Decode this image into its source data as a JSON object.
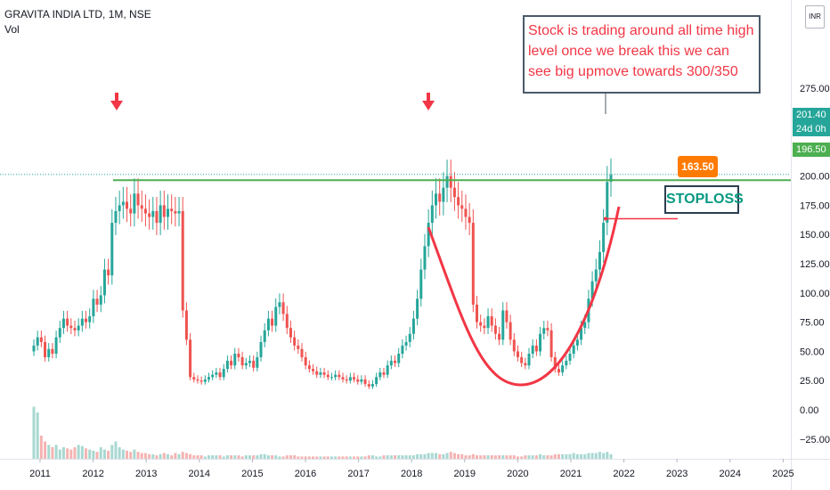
{
  "header": {
    "symbol_title": "GRAVITA INDIA LTD, 1M, NSE",
    "volume_label": "Vol"
  },
  "currency": "INR",
  "price_tags": {
    "last_price": "201.40",
    "countdown": "24d 0h",
    "level_price": "196.50"
  },
  "annotations": {
    "callout_text": "Stock is trading around all time high level once we break this we can see big upmove towards 300/350",
    "stoploss_value": "163.50",
    "stoploss_label": "STOPLOSS"
  },
  "colors": {
    "up": "#26a69a",
    "down": "#ef5350",
    "resistance_line": "#4caf50",
    "arrow": "#f23645",
    "cup_curve": "#f23645",
    "stoploss_badge": "#ff7a00",
    "stoploss_text": "#089981",
    "vol_up": "#a8d8d2",
    "vol_down": "#f4b4b2"
  },
  "chart_data": {
    "type": "candlestick",
    "title": "GRAVITA INDIA LTD, 1M, NSE",
    "y_ticks": [
      -25,
      0,
      25,
      50,
      75,
      100,
      125,
      150,
      175,
      200,
      225,
      250,
      275
    ],
    "y_tick_labels": [
      "−25.00",
      "0.00",
      "25.00",
      "50.00",
      "75.00",
      "100.00",
      "125.00",
      "150.00",
      "175.00",
      "200.00",
      "225.00",
      "250.00",
      "275.00"
    ],
    "x_tick_labels": [
      "2011",
      "2012",
      "2013",
      "2014",
      "2015",
      "2016",
      "2017",
      "2018",
      "2019",
      "2020",
      "2021",
      "2022",
      "2023",
      "2024",
      "2025"
    ],
    "ylim": [
      -30,
      275
    ],
    "grid": false,
    "resistance_level": 196.5,
    "stoploss_level": 163.5,
    "last_price": 201.4,
    "series_close": [
      55,
      62,
      58,
      45,
      52,
      48,
      62,
      70,
      78,
      72,
      70,
      68,
      72,
      78,
      75,
      80,
      95,
      90,
      98,
      120,
      115,
      160,
      170,
      175,
      178,
      172,
      168,
      185,
      175,
      172,
      168,
      165,
      170,
      160,
      175,
      165,
      172,
      170,
      168,
      170,
      85,
      60,
      28,
      26,
      25,
      24,
      26,
      28,
      30,
      32,
      28,
      35,
      42,
      38,
      48,
      45,
      38,
      40,
      42,
      36,
      45,
      58,
      68,
      78,
      72,
      88,
      92,
      82,
      70,
      62,
      55,
      52,
      45,
      38,
      35,
      33,
      30,
      32,
      30,
      28,
      28,
      30,
      28,
      26,
      25,
      28,
      26,
      24,
      26,
      22,
      20,
      22,
      28,
      32,
      30,
      38,
      42,
      40,
      48,
      55,
      58,
      65,
      78,
      95,
      120,
      140,
      160,
      175,
      185,
      178,
      190,
      200,
      190,
      182,
      175,
      172,
      165,
      160,
      90,
      75,
      72,
      70,
      80,
      72,
      65,
      60,
      85,
      75,
      60,
      50,
      45,
      40,
      38,
      48,
      55,
      50,
      65,
      70,
      68,
      45,
      35,
      32,
      38,
      42,
      48,
      55,
      60,
      70,
      75,
      95,
      110,
      120,
      135,
      160,
      195,
      201
    ],
    "series_open": [
      50,
      55,
      62,
      58,
      45,
      52,
      48,
      62,
      70,
      78,
      72,
      70,
      68,
      72,
      78,
      75,
      80,
      95,
      90,
      98,
      120,
      115,
      160,
      170,
      175,
      178,
      172,
      168,
      185,
      175,
      172,
      168,
      165,
      170,
      160,
      175,
      165,
      172,
      170,
      168,
      170,
      85,
      60,
      28,
      26,
      25,
      24,
      26,
      28,
      30,
      32,
      28,
      35,
      42,
      38,
      48,
      45,
      38,
      40,
      42,
      36,
      45,
      58,
      68,
      78,
      72,
      88,
      92,
      82,
      70,
      62,
      55,
      52,
      45,
      38,
      35,
      33,
      30,
      32,
      30,
      28,
      28,
      30,
      28,
      26,
      25,
      28,
      26,
      24,
      26,
      22,
      20,
      22,
      28,
      32,
      30,
      38,
      42,
      40,
      48,
      55,
      58,
      65,
      78,
      95,
      120,
      140,
      160,
      175,
      185,
      178,
      190,
      200,
      190,
      182,
      175,
      172,
      165,
      160,
      90,
      75,
      72,
      70,
      80,
      72,
      65,
      60,
      85,
      75,
      60,
      50,
      45,
      40,
      38,
      48,
      55,
      50,
      65,
      70,
      68,
      45,
      35,
      32,
      38,
      42,
      48,
      55,
      60,
      70,
      75,
      95,
      110,
      120,
      135,
      160,
      195
    ],
    "volume": [
      45,
      40,
      20,
      15,
      12,
      10,
      12,
      8,
      10,
      9,
      8,
      10,
      12,
      11,
      9,
      8,
      7,
      6,
      10,
      8,
      7,
      12,
      15,
      10,
      8,
      7,
      6,
      8,
      6,
      5,
      5,
      4,
      4,
      3,
      4,
      5,
      4,
      3,
      5,
      4,
      6,
      5,
      4,
      3,
      3,
      3,
      2,
      3,
      3,
      3,
      3,
      2,
      3,
      3,
      3,
      3,
      2,
      3,
      3,
      3,
      3,
      4,
      4,
      3,
      3,
      3,
      2,
      2,
      3,
      3,
      3,
      2,
      2,
      2,
      2,
      2,
      2,
      2,
      2,
      2,
      2,
      2,
      2,
      2,
      2,
      2,
      2,
      2,
      2,
      2,
      3,
      3,
      2,
      2,
      3,
      3,
      3,
      3,
      3,
      3,
      3,
      3,
      3,
      4,
      4,
      4,
      5,
      5,
      5,
      4,
      4,
      5,
      6,
      5,
      4,
      4,
      3,
      3,
      4,
      3,
      3,
      3,
      3,
      3,
      3,
      3,
      3,
      3,
      3,
      3,
      2,
      2,
      3,
      3,
      3,
      3,
      4,
      3,
      3,
      3,
      4,
      4,
      4,
      4,
      4,
      5,
      4,
      4,
      4,
      5,
      5,
      5,
      6,
      5,
      6,
      4
    ]
  }
}
